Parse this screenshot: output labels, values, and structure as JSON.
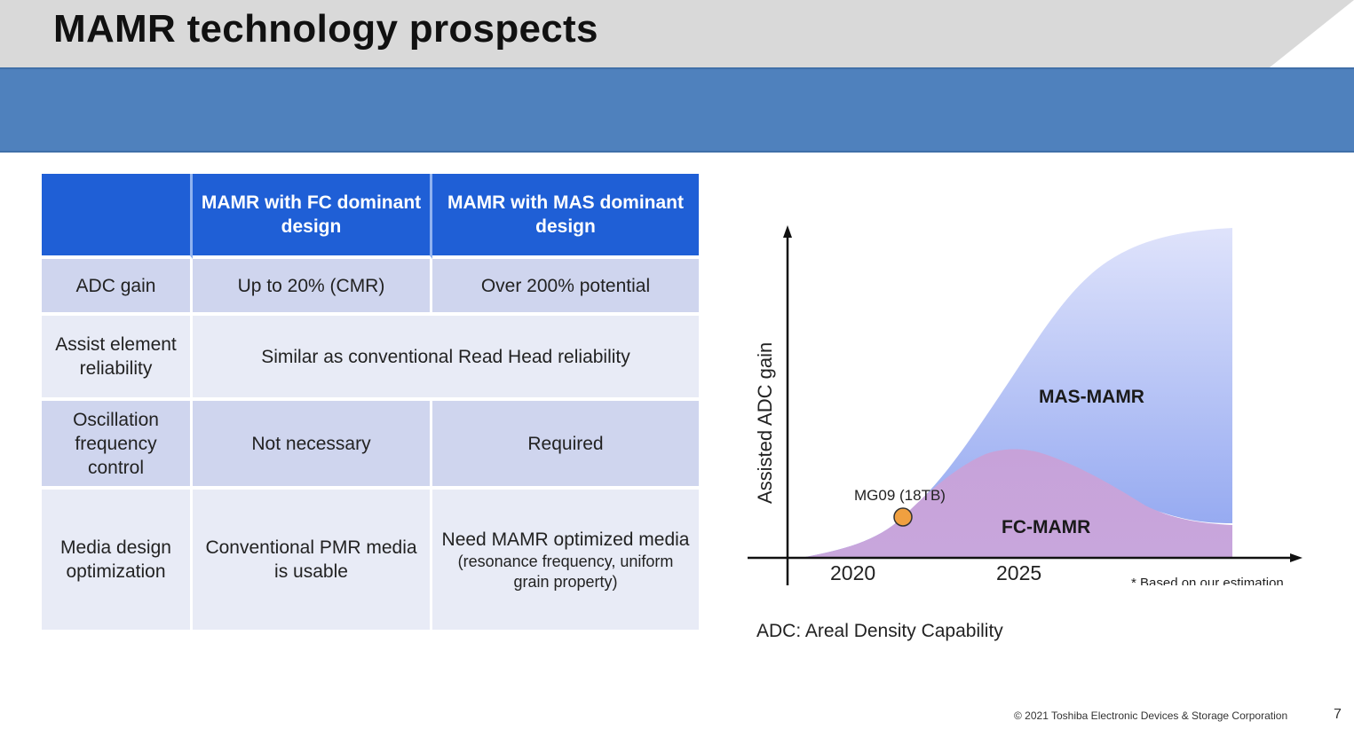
{
  "header": {
    "title": "MAMR technology prospects"
  },
  "colors": {
    "header_gray": "#d9d9d9",
    "band_blue": "#4f81bd",
    "table_header_blue": "#1f5fd6",
    "row_dark": "#cfd5ee",
    "row_light": "#e8ebf6",
    "mas_area": "#9aaef0",
    "fc_area": "#c49fd6",
    "marker_orange": "#f0a040"
  },
  "table": {
    "columns": [
      "",
      "MAMR with FC dominant design",
      "MAMR with MAS dominant design"
    ],
    "rows": [
      {
        "label": "ADC gain",
        "fc": "Up to 20% (CMR)",
        "mas": "Over 200% potential"
      },
      {
        "label": "Assist element reliability",
        "both": "Similar as conventional Read Head reliability"
      },
      {
        "label": "Oscillation frequency control",
        "fc": "Not necessary",
        "mas": "Required"
      },
      {
        "label": "Media design optimization",
        "fc": "Conventional PMR media is usable",
        "mas": "Need MAMR optimized media",
        "mas_note": "(resonance frequency, uniform grain property)"
      }
    ]
  },
  "chart_data": {
    "type": "area",
    "title": "",
    "xlabel": "",
    "ylabel": "Assisted ADC gain",
    "x_ticks": [
      "2020",
      "2025"
    ],
    "series": [
      {
        "name": "MAS-MAMR",
        "color": "#9aaef0"
      },
      {
        "name": "FC-MAMR",
        "color": "#c49fd6"
      }
    ],
    "annotations": [
      {
        "text": "MG09 (18TB)",
        "marker": "orange-circle"
      }
    ],
    "footnote": "* Based on our estimation",
    "grid": false
  },
  "notes": {
    "adc_definition": "ADC: Areal Density Capability"
  },
  "footer": {
    "copyright": "© 2021 Toshiba Electronic Devices & Storage Corporation",
    "page_number": "7"
  }
}
